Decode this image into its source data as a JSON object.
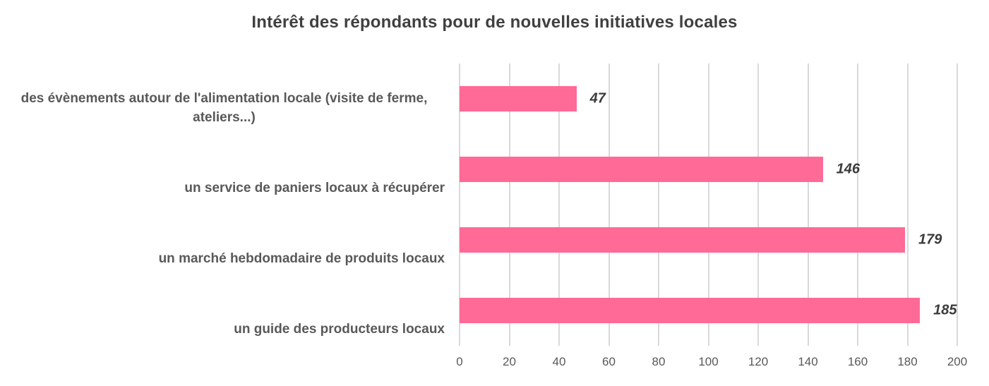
{
  "title": "Intérêt des répondants pour de nouvelles initiatives locales",
  "chart_data": {
    "type": "bar",
    "orientation": "horizontal",
    "title": "Intérêt des répondants pour de nouvelles initiatives locales",
    "categories": [
      "des évènements autour de l'alimentation locale (visite de ferme, ateliers...)",
      "un service de paniers locaux à récupérer",
      "un marché hebdomadaire de produits locaux",
      "un guide des producteurs locaux"
    ],
    "values": [
      47,
      146,
      179,
      185
    ],
    "value_labels": [
      "47",
      "146",
      "179",
      "185"
    ],
    "xlabel": "",
    "ylabel": "",
    "xlim": [
      0,
      200
    ],
    "xticks": [
      0,
      20,
      40,
      60,
      80,
      100,
      120,
      140,
      160,
      180,
      200
    ],
    "grid": "vertical-gridlines-on",
    "legend": "none",
    "colors": {
      "bar": "#FF6A96",
      "gridline": "#D9D9D9",
      "title_text": "#404040",
      "category_text": "#595959",
      "tick_text": "#595959",
      "value_text": "#3B3B3B",
      "background": "#FFFFFF"
    }
  }
}
